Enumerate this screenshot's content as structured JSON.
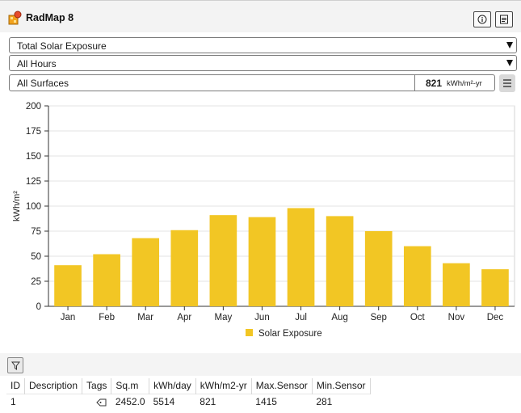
{
  "app": {
    "title": "RadMap 8"
  },
  "toolbar": {
    "info_icon": "info-icon",
    "export_icon": "export-report-icon"
  },
  "selectors": {
    "metric": "Total Solar Exposure",
    "hours": "All Hours",
    "surfaces": "All Surfaces"
  },
  "total": {
    "value": "821",
    "unit": "kWh/m²-yr"
  },
  "chart_data": {
    "type": "bar",
    "categories": [
      "Jan",
      "Feb",
      "Mar",
      "Apr",
      "May",
      "Jun",
      "Jul",
      "Aug",
      "Sep",
      "Oct",
      "Nov",
      "Dec"
    ],
    "series": [
      {
        "name": "Solar Exposure",
        "values": [
          41,
          52,
          68,
          76,
          91,
          89,
          98,
          90,
          75,
          60,
          43,
          37
        ]
      }
    ],
    "ylabel": "kWh/m²",
    "xlabel": "",
    "ylim": [
      0,
      200
    ],
    "yticks": [
      "0",
      "25",
      "50",
      "75",
      "100",
      "125",
      "150",
      "175",
      "200"
    ],
    "color": "#f2c624",
    "grid": true,
    "legend_position": "bottom"
  },
  "table": {
    "columns": [
      "ID",
      "Description",
      "Tags",
      "Sq.m",
      "kWh/day",
      "kWh/m2-yr",
      "Max.Sensor",
      "Min.Sensor"
    ],
    "rows": [
      {
        "id": "1",
        "description": "",
        "tags_icon": "tag-icon",
        "sqm": "2452.0",
        "kwh_day": "5514",
        "kwh_m2_yr": "821",
        "max_sensor": "1415",
        "min_sensor": "281"
      }
    ]
  }
}
